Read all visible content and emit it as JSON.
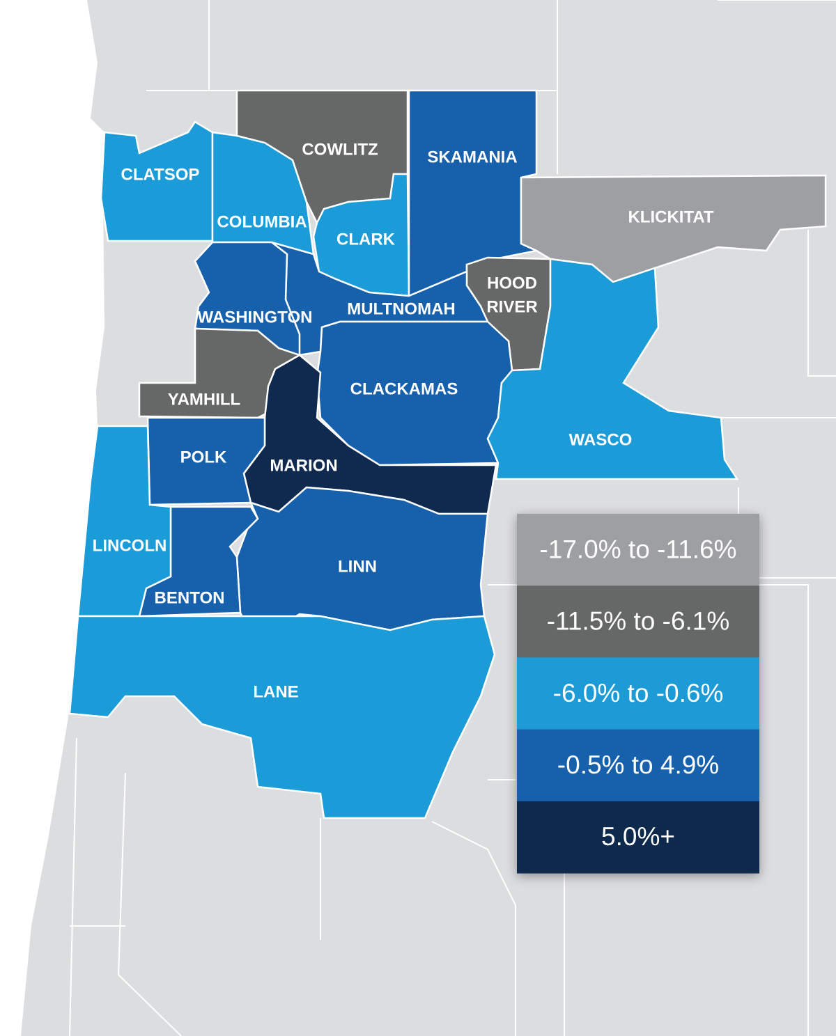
{
  "map": {
    "counties": [
      {
        "name": "CLATSOP",
        "color": "#1b9bd7"
      },
      {
        "name": "COLUMBIA",
        "color": "#1b9bd7"
      },
      {
        "name": "COWLITZ",
        "color": "#666767"
      },
      {
        "name": "CLARK",
        "color": "#1b9bd7"
      },
      {
        "name": "SKAMANIA",
        "color": "#1660ac"
      },
      {
        "name": "KLICKITAT",
        "color": "#9d9fa2"
      },
      {
        "name": [
          "HOOD",
          "RIVER"
        ],
        "color": "#666767"
      },
      {
        "name": "MULTNOMAH",
        "color": "#1660ac"
      },
      {
        "name": "WASHINGTON",
        "color": "#1660ac"
      },
      {
        "name": "YAMHILL",
        "color": "#666767"
      },
      {
        "name": "CLACKAMAS",
        "color": "#1660ac"
      },
      {
        "name": "MARION",
        "color": "#0f2a4e"
      },
      {
        "name": "POLK",
        "color": "#1660ac"
      },
      {
        "name": "LINN",
        "color": "#1660ac"
      },
      {
        "name": "BENTON",
        "color": "#1660ac"
      },
      {
        "name": "LINCOLN",
        "color": "#1b9bd7"
      },
      {
        "name": "LANE",
        "color": "#1b9bd7"
      },
      {
        "name": "WASCO",
        "color": "#1b9bd7"
      }
    ],
    "legend": [
      {
        "label": "-17.0% to -11.6%",
        "color": "#9d9fa2"
      },
      {
        "label": "-11.5% to -6.1%",
        "color": "#666767"
      },
      {
        "label": "-6.0% to -0.6%",
        "color": "#1b9bd7"
      },
      {
        "label": "-0.5% to 4.9%",
        "color": "#1660ac"
      },
      {
        "label": "5.0%+",
        "color": "#0f2a4e"
      }
    ]
  }
}
